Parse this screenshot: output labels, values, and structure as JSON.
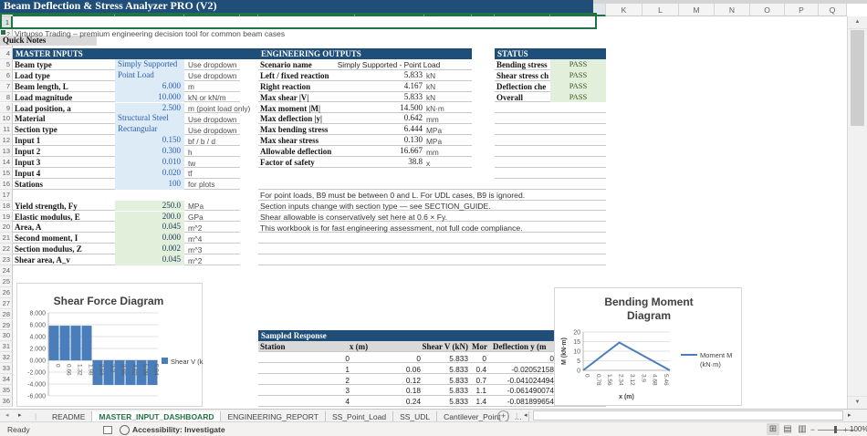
{
  "colors": {
    "band_blue": "#1F4E79",
    "input_bg": "#DDEBF7",
    "input_text": "#2E5EAE",
    "calc_bg": "#E2EFDA",
    "calc_text": "#17375E",
    "pass_bg": "#E2EFDA",
    "pass_text": "#375623",
    "series_blue": "#4A7EBB",
    "selection_green": "#217346"
  },
  "sheet": {
    "columns": [
      "A",
      "B",
      "C",
      "D",
      "E",
      "F",
      "G",
      "H",
      "I",
      "J",
      "K",
      "L",
      "M",
      "N",
      "O",
      "P",
      "Q"
    ],
    "selected_columns": [
      "A",
      "B",
      "C",
      "D",
      "E",
      "F",
      "G",
      "H",
      "I",
      "J"
    ],
    "row_count": 36,
    "title": "Beam Deflection & Stress Analyzer PRO (V2)",
    "subtitle": "Virtuoso Trading – premium engineering decision tool for common beam cases"
  },
  "master_inputs": {
    "header": "MASTER INPUTS",
    "rows": [
      {
        "row": 5,
        "label": "Beam type",
        "value": "Simply Supported",
        "unit": "Use dropdown",
        "kind": "text"
      },
      {
        "row": 6,
        "label": "Load type",
        "value": "Point Load",
        "unit": "Use dropdown",
        "kind": "text"
      },
      {
        "row": 7,
        "label": "Beam length, L",
        "value": "6.000",
        "unit": "m",
        "kind": "num"
      },
      {
        "row": 8,
        "label": "Load magnitude",
        "value": "10.000",
        "unit": "kN or kN/m",
        "kind": "num"
      },
      {
        "row": 9,
        "label": "Load position, a",
        "value": "2.500",
        "unit": "m (point load only)",
        "kind": "num"
      },
      {
        "row": 10,
        "label": "Material",
        "value": "Structural Steel",
        "unit": "Use dropdown",
        "kind": "text"
      },
      {
        "row": 11,
        "label": "Section type",
        "value": "Rectangular",
        "unit": "Use dropdown",
        "kind": "text"
      },
      {
        "row": 12,
        "label": "Input 1",
        "value": "0.150",
        "unit": "bf / b / d",
        "kind": "num"
      },
      {
        "row": 13,
        "label": "Input 2",
        "value": "0.300",
        "unit": "h",
        "kind": "num"
      },
      {
        "row": 14,
        "label": "Input 3",
        "value": "0.010",
        "unit": "tw",
        "kind": "num"
      },
      {
        "row": 15,
        "label": "Input 4",
        "value": "0.020",
        "unit": "tf",
        "kind": "num"
      },
      {
        "row": 16,
        "label": "Stations",
        "value": "100",
        "unit": "for plots",
        "kind": "num"
      }
    ]
  },
  "section_properties": {
    "rows": [
      {
        "row": 18,
        "label": "Yield strength, Fy",
        "value": "250.0",
        "unit": "MPa"
      },
      {
        "row": 19,
        "label": "Elastic modulus, E",
        "value": "200.0",
        "unit": "GPa"
      },
      {
        "row": 20,
        "label": "Area, A",
        "value": "0.045",
        "unit": "m^2"
      },
      {
        "row": 21,
        "label": "Second moment, I",
        "value": "0.000",
        "unit": "m^4"
      },
      {
        "row": 22,
        "label": "Section modulus, Z",
        "value": "0.002",
        "unit": "m^3"
      },
      {
        "row": 23,
        "label": "Shear area, A_v",
        "value": "0.045",
        "unit": "m^2"
      }
    ]
  },
  "outputs": {
    "header": "ENGINEERING OUTPUTS",
    "rows": [
      {
        "row": 5,
        "label": "Scenario name",
        "value": "Simply Supported - Point Load",
        "unit": "",
        "align": "center"
      },
      {
        "row": 6,
        "label": "Left / fixed reaction",
        "value": "5.833",
        "unit": "kN"
      },
      {
        "row": 7,
        "label": "Right reaction",
        "value": "4.167",
        "unit": "kN"
      },
      {
        "row": 8,
        "label": "Max shear |V|",
        "value": "5.833",
        "unit": "kN"
      },
      {
        "row": 9,
        "label": "Max moment |M|",
        "value": "14.500",
        "unit": "kN·m"
      },
      {
        "row": 10,
        "label": "Max deflection |y|",
        "value": "0.642",
        "unit": "mm"
      },
      {
        "row": 11,
        "label": "Max bending stress",
        "value": "6.444",
        "unit": "MPa"
      },
      {
        "row": 12,
        "label": "Max shear stress",
        "value": "0.130",
        "unit": "MPa"
      },
      {
        "row": 13,
        "label": "Allowable deflection",
        "value": "16.667",
        "unit": "mm"
      },
      {
        "row": 14,
        "label": "Factor of safety",
        "value": "38.8",
        "unit": "x"
      }
    ]
  },
  "status": {
    "header": "STATUS",
    "rows": [
      {
        "row": 5,
        "label": "Bending stress",
        "value": "PASS"
      },
      {
        "row": 6,
        "label": "Shear stress ch",
        "value": "PASS"
      },
      {
        "row": 7,
        "label": "Deflection che",
        "value": "PASS"
      },
      {
        "row": 8,
        "label": "Overall",
        "value": "PASS"
      }
    ]
  },
  "quick_notes": {
    "header": "Quick Notes",
    "notes": [
      "For point loads, B9 must be between 0 and L. For UDL cases, B9 is ignored.",
      "Section inputs change with section type — see SECTION_GUIDE.",
      "Shear allowable is conservatively set here at 0.6 × Fy.",
      "This workbook is for fast engineering assessment, not full code compliance."
    ]
  },
  "sampled": {
    "header": "Sampled Response",
    "col_headers": [
      "Station",
      "x (m)",
      "Shear V (kN)",
      "Mor",
      "Deflection y (m"
    ],
    "rows": [
      [
        "0",
        "0",
        "5.833",
        "0",
        "0"
      ],
      [
        "1",
        "0.06",
        "5.833",
        "0.4",
        "-0.02052158"
      ],
      [
        "2",
        "0.12",
        "5.833",
        "0.7",
        "-0.041024494"
      ],
      [
        "3",
        "0.18",
        "5.833",
        "1.1",
        "-0.061490074"
      ],
      [
        "4",
        "0.24",
        "5.833",
        "1.4",
        "-0.081899654"
      ]
    ]
  },
  "chart_data": [
    {
      "type": "bar",
      "title": "Shear Force Diagram",
      "categories": [
        "0",
        "0.66",
        "1.32",
        "1.98",
        "2.64",
        "3.3",
        "3.96",
        "4.62",
        "5.28",
        "5.94"
      ],
      "values": [
        5.833,
        5.833,
        5.833,
        5.833,
        -4.167,
        -4.167,
        -4.167,
        -4.167,
        -4.167,
        -4.167
      ],
      "ylim": [
        -6,
        8
      ],
      "ytick_step": 2,
      "ytick_decimals": 3,
      "legend": [
        "Shear V (kN)"
      ],
      "legend_position": "right",
      "grid": true
    },
    {
      "type": "line",
      "title": "Bending Moment Diagram",
      "x": [
        0,
        2.5,
        6
      ],
      "y": [
        0,
        14.5,
        0
      ],
      "xlim": [
        0,
        6
      ],
      "xticks": [
        "0",
        "0.78",
        "1.56",
        "2.34",
        "3.12",
        "3.9",
        "4.68",
        "5.46"
      ],
      "ylim": [
        0,
        20
      ],
      "ytick_step": 5,
      "xlabel": "x (m)",
      "ylabel": "M (kN·m)",
      "legend": [
        "Moment M",
        "(kN·m)"
      ],
      "legend_position": "right",
      "grid": true
    }
  ],
  "tab_bar": {
    "tabs": [
      {
        "label": "README",
        "active": false
      },
      {
        "label": "MASTER_INPUT_DASHBOARD",
        "active": true
      },
      {
        "label": "ENGINEERING_REPORT",
        "active": false
      },
      {
        "label": "SS_Point_Load",
        "active": false
      },
      {
        "label": "SS_UDL",
        "active": false
      },
      {
        "label": "Cantilever_Point",
        "active": false
      }
    ],
    "overflow_tab": "…",
    "add_sheet": "+"
  },
  "status_bar": {
    "ready": "Ready",
    "accessibility": "Accessibility: Investigate",
    "zoom": "100%"
  }
}
